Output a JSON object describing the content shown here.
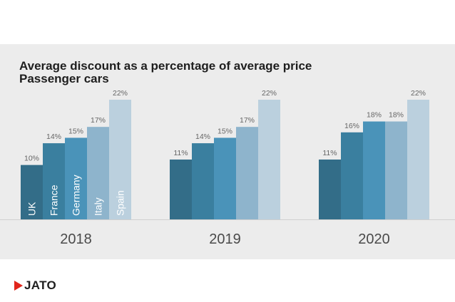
{
  "header": {
    "title": "Average discount as a percentage of average price",
    "subtitle": "Passenger cars"
  },
  "brand": {
    "logo_text": "JATO",
    "logo_color": "#e1251b"
  },
  "colors": {
    "UK": "#336d88",
    "France": "#3a7f9f",
    "Germany": "#4a93b9",
    "Italy": "#8eb4cc",
    "Spain": "#bbd0de"
  },
  "chart_data": {
    "type": "bar",
    "title": "Average discount as a percentage of average price",
    "subtitle": "Passenger cars",
    "categories": [
      "2018",
      "2019",
      "2020"
    ],
    "series": [
      {
        "name": "UK",
        "values": [
          10,
          11,
          11
        ]
      },
      {
        "name": "France",
        "values": [
          14,
          14,
          16
        ]
      },
      {
        "name": "Germany",
        "values": [
          15,
          15,
          18
        ]
      },
      {
        "name": "Italy",
        "values": [
          17,
          17,
          18
        ]
      },
      {
        "name": "Spain",
        "values": [
          22,
          22,
          22
        ]
      }
    ],
    "value_suffix": "%",
    "ylim": [
      0,
      22
    ],
    "grid": false,
    "legend": "series names written inside bars of first group"
  }
}
